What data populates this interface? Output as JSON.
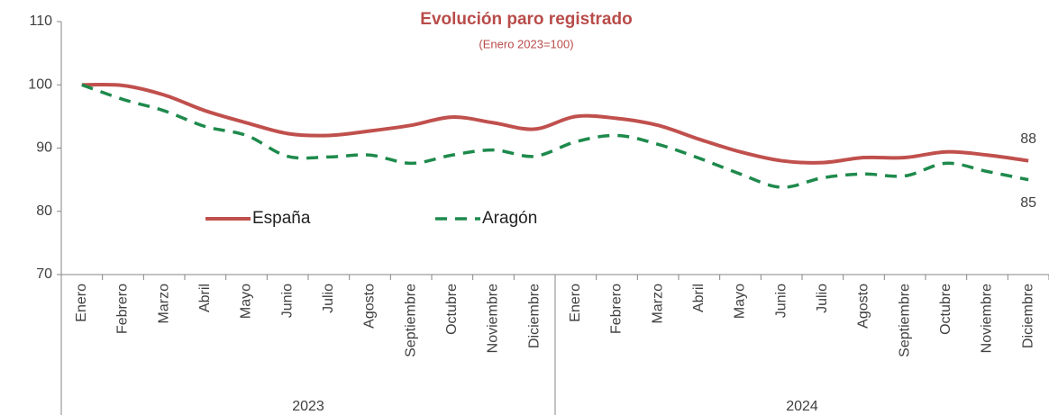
{
  "chart_data": {
    "type": "line",
    "title": "Evolución paro registrado",
    "subtitle": "(Enero 2023=100)",
    "groups": [
      {
        "name": "2023",
        "categories": [
          "Enero",
          "Febrero",
          "Marzo",
          "Abril",
          "Mayo",
          "Junio",
          "Julio",
          "Agosto",
          "Septiembre",
          "Octubre",
          "Noviembre",
          "Diciembre"
        ]
      },
      {
        "name": "2024",
        "categories": [
          "Enero",
          "Febrero",
          "Marzo",
          "Abril",
          "Mayo",
          "Junio",
          "Julio",
          "Agosto",
          "Septiembre",
          "Octubre",
          "Noviembre",
          "Diciembre"
        ]
      }
    ],
    "series": [
      {
        "name": "España",
        "color": "#c0504d",
        "dash": false,
        "values": [
          100,
          99.9,
          98.4,
          95.9,
          94,
          92.3,
          92,
          92.7,
          93.6,
          94.9,
          94,
          93,
          95,
          94.7,
          93.6,
          91.4,
          89.4,
          88,
          87.7,
          88.5,
          88.5,
          89.4,
          88.9,
          88
        ]
      },
      {
        "name": "Aragón",
        "color": "#1e8a4c",
        "dash": true,
        "values": [
          100,
          97.7,
          95.9,
          93.4,
          92,
          88.7,
          88.6,
          88.9,
          87.6,
          88.9,
          89.7,
          88.7,
          91,
          92,
          90.6,
          88.4,
          85.9,
          83.8,
          85.3,
          85.9,
          85.6,
          87.6,
          86.3,
          85
        ]
      }
    ],
    "ylim": [
      70,
      110
    ],
    "yticks": [
      70,
      80,
      90,
      100,
      110
    ],
    "grid": false
  }
}
